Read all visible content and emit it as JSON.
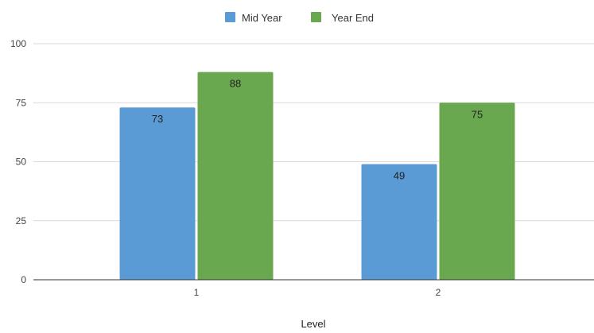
{
  "chart_data": {
    "type": "bar",
    "title": "",
    "xlabel": "Level",
    "ylabel": "",
    "categories": [
      "1",
      "2"
    ],
    "series": [
      {
        "name": "Mid Year",
        "values": [
          73,
          49
        ],
        "color": "#5b9bd5"
      },
      {
        "name": "Year End",
        "values": [
          88,
          75
        ],
        "color": "#6aa84f"
      }
    ],
    "ylim": [
      0,
      100
    ],
    "yticks": [
      "0",
      "25",
      "50",
      "75",
      "100"
    ],
    "grid": true,
    "legend_position": "top-center",
    "data_labels": true
  }
}
